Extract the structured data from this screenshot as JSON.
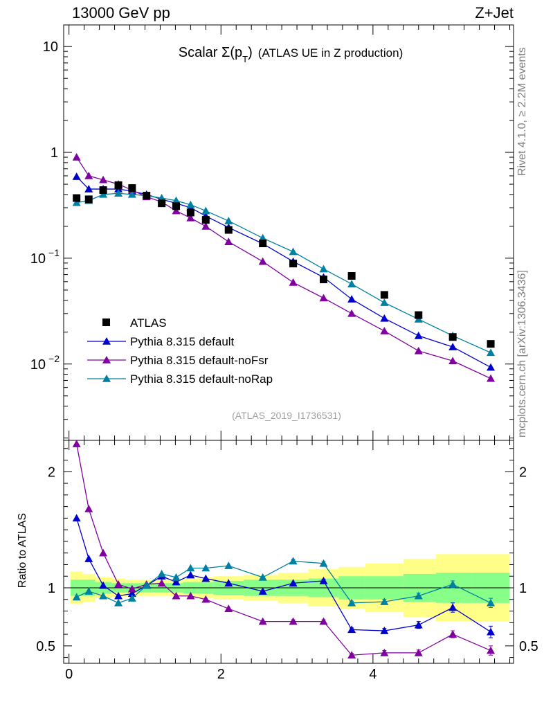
{
  "header": {
    "energy": "13000 GeV pp",
    "process": "Z+Jet",
    "side_rivet": "Rivet 4.1.0, ≥ 2.2M events",
    "side_mcplots": "mcplots.cern.ch [arXiv:1306.3436]"
  },
  "chart_data": {
    "type": "scatter",
    "title": "Scalar Σ(p_T) (ATLAS UE in Z production)",
    "analysis_tag": "(ATLAS_2019_I1736531)",
    "main": {
      "yscale": "log",
      "ylim": [
        0.0019,
        16
      ],
      "yticks": [
        {
          "v": 0.01,
          "base": "10",
          "exp": "−2"
        },
        {
          "v": 0.1,
          "base": "10",
          "exp": "−1"
        },
        {
          "v": 1,
          "base": "1",
          "exp": ""
        },
        {
          "v": 10,
          "base": "10",
          "exp": ""
        }
      ]
    },
    "ratio": {
      "ylabel": "Ratio to ATLAS",
      "ylim": [
        0.35,
        2.27
      ],
      "yticks": [
        {
          "v": 0.5,
          "label": "0.5"
        },
        {
          "v": 1,
          "label": "1"
        },
        {
          "v": 2,
          "label": "2"
        }
      ]
    },
    "x": {
      "xlim": [
        -0.07,
        5.85
      ],
      "xticks": [
        {
          "v": 0,
          "label": "0"
        },
        {
          "v": 2,
          "label": "2"
        },
        {
          "v": 4,
          "label": "4"
        }
      ]
    },
    "bins": [
      {
        "x": 0.1,
        "lo": 0.02,
        "hi": 0.18
      },
      {
        "x": 0.26,
        "lo": 0.18,
        "hi": 0.34
      },
      {
        "x": 0.45,
        "lo": 0.34,
        "hi": 0.56
      },
      {
        "x": 0.65,
        "lo": 0.56,
        "hi": 0.74
      },
      {
        "x": 0.83,
        "lo": 0.74,
        "hi": 0.92
      },
      {
        "x": 1.02,
        "lo": 0.92,
        "hi": 1.12
      },
      {
        "x": 1.22,
        "lo": 1.12,
        "hi": 1.32
      },
      {
        "x": 1.41,
        "lo": 1.32,
        "hi": 1.5
      },
      {
        "x": 1.6,
        "lo": 1.5,
        "hi": 1.7
      },
      {
        "x": 1.8,
        "lo": 1.7,
        "hi": 1.9
      },
      {
        "x": 2.1,
        "lo": 1.9,
        "hi": 2.3
      },
      {
        "x": 2.55,
        "lo": 2.3,
        "hi": 2.75
      },
      {
        "x": 2.95,
        "lo": 2.75,
        "hi": 3.15
      },
      {
        "x": 3.35,
        "lo": 3.15,
        "hi": 3.55
      },
      {
        "x": 3.72,
        "lo": 3.55,
        "hi": 3.9
      },
      {
        "x": 4.15,
        "lo": 3.9,
        "hi": 4.4
      },
      {
        "x": 4.6,
        "lo": 4.4,
        "hi": 4.83
      },
      {
        "x": 5.05,
        "lo": 4.83,
        "hi": 5.3
      },
      {
        "x": 5.55,
        "lo": 5.3,
        "hi": 5.8
      }
    ],
    "data": {
      "name": "ATLAS",
      "values": [
        0.37,
        0.36,
        0.44,
        0.49,
        0.46,
        0.39,
        0.33,
        0.31,
        0.27,
        0.23,
        0.185,
        0.138,
        0.089,
        0.063,
        0.068,
        0.045,
        0.029,
        0.018,
        0.0155
      ],
      "ratio_band_inner": [
        0.93,
        0.93,
        0.95,
        0.96,
        0.96,
        0.96,
        0.96,
        0.96,
        0.95,
        0.95,
        0.94,
        0.93,
        0.93,
        0.92,
        0.9,
        0.9,
        0.88,
        0.87,
        0.87
      ],
      "ratio_band_inner_hi": [
        1.07,
        1.07,
        1.05,
        1.04,
        1.04,
        1.04,
        1.04,
        1.04,
        1.05,
        1.05,
        1.06,
        1.07,
        1.07,
        1.08,
        1.1,
        1.1,
        1.12,
        1.13,
        1.13
      ],
      "ratio_band_outer": [
        0.86,
        0.88,
        0.91,
        0.92,
        0.93,
        0.93,
        0.93,
        0.93,
        0.92,
        0.91,
        0.9,
        0.89,
        0.87,
        0.84,
        0.82,
        0.79,
        0.75,
        0.71,
        0.71
      ],
      "ratio_band_outer_hi": [
        1.14,
        1.12,
        1.09,
        1.08,
        1.07,
        1.07,
        1.07,
        1.07,
        1.08,
        1.09,
        1.1,
        1.11,
        1.13,
        1.16,
        1.18,
        1.21,
        1.25,
        1.29,
        1.29
      ]
    },
    "series": [
      {
        "name": "Pythia 8.315 default",
        "color": "#0000cc",
        "values": [
          0.59,
          0.45,
          0.45,
          0.45,
          0.43,
          0.4,
          0.36,
          0.33,
          0.3,
          0.25,
          0.195,
          0.137,
          0.093,
          0.066,
          0.041,
          0.027,
          0.0185,
          0.0145,
          0.0093
        ],
        "ratio": [
          1.6,
          1.25,
          1.02,
          0.93,
          0.95,
          1.02,
          1.1,
          1.05,
          1.11,
          1.08,
          1.04,
          0.97,
          1.04,
          1.06,
          0.64,
          0.63,
          0.68,
          0.83,
          0.62
        ],
        "ratio_err": [
          0.01,
          0.01,
          0.01,
          0.01,
          0.01,
          0.01,
          0.01,
          0.01,
          0.01,
          0.01,
          0.01,
          0.01,
          0.01,
          0.015,
          0.015,
          0.02,
          0.03,
          0.04,
          0.05
        ]
      },
      {
        "name": "Pythia 8.315 default-noFsr",
        "color": "#8000a0",
        "values": [
          0.9,
          0.6,
          0.55,
          0.5,
          0.44,
          0.38,
          0.34,
          0.28,
          0.24,
          0.2,
          0.143,
          0.093,
          0.059,
          0.042,
          0.03,
          0.0205,
          0.0133,
          0.0107,
          0.0073
        ],
        "ratio": [
          2.24,
          1.68,
          1.3,
          1.03,
          0.99,
          1.03,
          1.04,
          0.93,
          0.93,
          0.9,
          0.82,
          0.71,
          0.71,
          0.71,
          0.42,
          0.44,
          0.44,
          0.6,
          0.46
        ],
        "ratio_err": [
          0.01,
          0.01,
          0.01,
          0.01,
          0.01,
          0.01,
          0.01,
          0.01,
          0.01,
          0.01,
          0.01,
          0.01,
          0.015,
          0.015,
          0.015,
          0.02,
          0.025,
          0.03,
          0.04
        ]
      },
      {
        "name": "Pythia 8.315 default-noRap",
        "color": "#0080a0",
        "values": [
          0.335,
          0.35,
          0.4,
          0.41,
          0.4,
          0.39,
          0.37,
          0.35,
          0.32,
          0.28,
          0.225,
          0.155,
          0.115,
          0.079,
          0.057,
          0.038,
          0.0265,
          0.0185,
          0.0128
        ],
        "ratio": [
          0.92,
          0.97,
          0.93,
          0.87,
          0.91,
          1.02,
          1.12,
          1.09,
          1.17,
          1.17,
          1.19,
          1.09,
          1.23,
          1.21,
          0.87,
          0.88,
          0.93,
          1.03,
          0.87
        ],
        "ratio_err": [
          0.01,
          0.01,
          0.01,
          0.01,
          0.01,
          0.01,
          0.01,
          0.01,
          0.01,
          0.01,
          0.01,
          0.01,
          0.015,
          0.015,
          0.015,
          0.02,
          0.025,
          0.03,
          0.04
        ]
      }
    ]
  }
}
